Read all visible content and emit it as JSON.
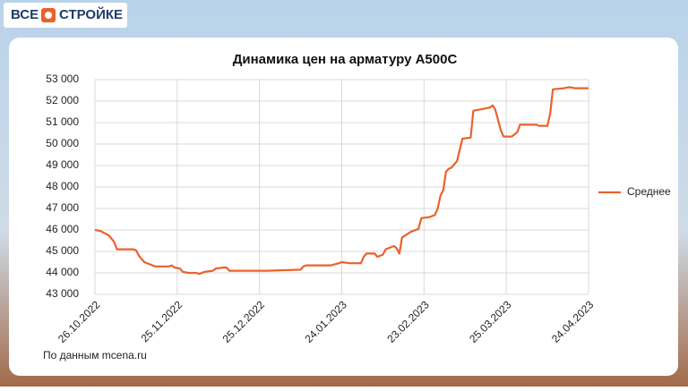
{
  "brand": {
    "left": "ВСЕ",
    "right": "СТРОЙКЕ"
  },
  "chart_data": {
    "type": "line",
    "title": "Динамика цен на арматуру А500С",
    "x": [
      "2022-10-26",
      "2022-10-28",
      "2022-10-31",
      "2022-11-02",
      "2022-11-03",
      "2022-11-09",
      "2022-11-10",
      "2022-11-11",
      "2022-11-13",
      "2022-11-15",
      "2022-11-17",
      "2022-11-22",
      "2022-11-23",
      "2022-11-24",
      "2022-11-26",
      "2022-11-27",
      "2022-11-29",
      "2022-12-02",
      "2022-12-03",
      "2022-12-05",
      "2022-12-08",
      "2022-12-09",
      "2022-12-12",
      "2022-12-13",
      "2022-12-14",
      "2022-12-28",
      "2023-01-09",
      "2023-01-10",
      "2023-01-11",
      "2023-01-20",
      "2023-01-23",
      "2023-01-24",
      "2023-01-27",
      "2023-01-31",
      "2023-02-01",
      "2023-02-02",
      "2023-02-05",
      "2023-02-06",
      "2023-02-08",
      "2023-02-09",
      "2023-02-12",
      "2023-02-13",
      "2023-02-14",
      "2023-02-15",
      "2023-02-18",
      "2023-02-21",
      "2023-02-22",
      "2023-02-25",
      "2023-02-27",
      "2023-02-28",
      "2023-03-01",
      "2023-03-02",
      "2023-03-03",
      "2023-03-04",
      "2023-03-05",
      "2023-03-07",
      "2023-03-09",
      "2023-03-12",
      "2023-03-13",
      "2023-03-15",
      "2023-03-17",
      "2023-03-19",
      "2023-03-20",
      "2023-03-21",
      "2023-03-23",
      "2023-03-24",
      "2023-03-27",
      "2023-03-29",
      "2023-03-30",
      "2023-04-05",
      "2023-04-06",
      "2023-04-09",
      "2023-04-10",
      "2023-04-11",
      "2023-04-15",
      "2023-04-17",
      "2023-04-19",
      "2023-04-24"
    ],
    "series": [
      {
        "name": "Среднее",
        "color": "#e8622c",
        "values": [
          46000,
          45950,
          45750,
          45450,
          45100,
          45100,
          45050,
          44800,
          44500,
          44400,
          44300,
          44300,
          44350,
          44250,
          44200,
          44050,
          44000,
          44000,
          43950,
          44050,
          44100,
          44200,
          44250,
          44250,
          44100,
          44100,
          44150,
          44300,
          44350,
          44350,
          44450,
          44500,
          44450,
          44450,
          44750,
          44900,
          44900,
          44750,
          44850,
          45100,
          45250,
          45150,
          44900,
          45650,
          45900,
          46050,
          46550,
          46600,
          46700,
          47000,
          47600,
          47850,
          48700,
          48850,
          48900,
          49200,
          50250,
          50300,
          51550,
          51600,
          51650,
          51700,
          51800,
          51600,
          50650,
          50350,
          50350,
          50550,
          50900,
          50900,
          50850,
          50850,
          51400,
          52550,
          52600,
          52650,
          52600,
          52600
        ]
      }
    ],
    "xlim": [
      "2022-10-26",
      "2023-04-24"
    ],
    "xticks": [
      {
        "value": "2022-10-26",
        "label": "26.10.2022"
      },
      {
        "value": "2022-11-25",
        "label": "25.11.2022"
      },
      {
        "value": "2022-12-25",
        "label": "25.12.2022"
      },
      {
        "value": "2023-01-24",
        "label": "24.01.2023"
      },
      {
        "value": "2023-02-23",
        "label": "23.02.2023"
      },
      {
        "value": "2023-03-25",
        "label": "25.03.2023"
      },
      {
        "value": "2023-04-24",
        "label": "24.04.2023"
      }
    ],
    "ylim": [
      43000,
      53000
    ],
    "yticks": [
      {
        "value": 43000,
        "label": "43 000"
      },
      {
        "value": 44000,
        "label": "44 000"
      },
      {
        "value": 45000,
        "label": "45 000"
      },
      {
        "value": 46000,
        "label": "46 000"
      },
      {
        "value": 47000,
        "label": "47 000"
      },
      {
        "value": 48000,
        "label": "48 000"
      },
      {
        "value": 49000,
        "label": "49 000"
      },
      {
        "value": 50000,
        "label": "50 000"
      },
      {
        "value": 51000,
        "label": "51 000"
      },
      {
        "value": 52000,
        "label": "52 000"
      },
      {
        "value": 53000,
        "label": "53 000"
      }
    ],
    "grid": true,
    "legend": "right",
    "source": "По данным mcena.ru"
  }
}
